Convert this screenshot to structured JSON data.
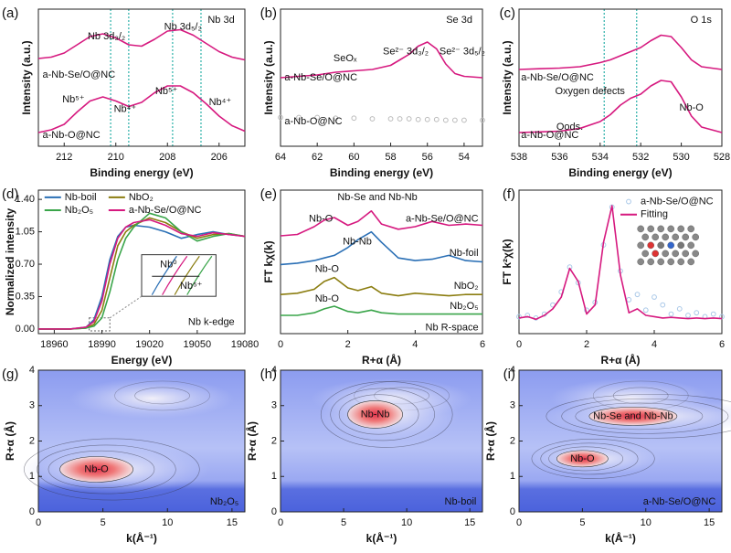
{
  "chart_data": [
    {
      "type": "line",
      "panel": "(a)",
      "xlabel": "Binding energy (eV)",
      "ylabel": "Intensity (a.u.)",
      "xlim": [
        213,
        205
      ],
      "ylim": [
        0,
        10
      ],
      "xticks": [
        212,
        210,
        208,
        206
      ],
      "x": [
        213,
        212.5,
        212,
        211.5,
        211,
        210.5,
        210,
        209.5,
        209,
        208.5,
        208,
        207.5,
        207,
        206.5,
        206,
        205.5,
        205
      ],
      "series": [
        {
          "name": "a-Nb-Se/O@NC",
          "color": "#d6197f",
          "values": [
            6.4,
            6.5,
            6.8,
            7.4,
            8.0,
            8.2,
            7.9,
            7.4,
            7.3,
            7.8,
            8.4,
            8.5,
            8.1,
            7.5,
            6.9,
            6.5,
            6.3
          ]
        },
        {
          "name": "a-Nb-O@NC",
          "color": "#d6197f",
          "values": [
            1.0,
            1.2,
            1.6,
            2.5,
            3.3,
            3.6,
            3.3,
            2.9,
            3.2,
            3.9,
            4.4,
            4.4,
            3.9,
            3.1,
            2.2,
            1.5,
            1.1
          ]
        }
      ],
      "vlines": [
        210.2,
        209.5,
        207.8,
        206.7
      ],
      "annotations": [
        {
          "text": "Nb 3d",
          "color": "#111"
        },
        {
          "text": "Nb 3d₃/₂",
          "color": "#111"
        },
        {
          "text": "Nb 3d₅/₂",
          "color": "#111"
        },
        {
          "text": "Nb⁵⁺",
          "color": "#3a9a3a"
        },
        {
          "text": "Nb⁴⁺",
          "color": "#9b59c6"
        },
        {
          "text": "Nb⁵⁺",
          "color": "#e08a2a"
        },
        {
          "text": "Nb⁴⁺",
          "color": "#2a6fb5"
        }
      ]
    },
    {
      "type": "line",
      "panel": "(b)",
      "xlabel": "Binding energy (eV)",
      "ylabel": "Intensity (a.u.)",
      "xlim": [
        64,
        53
      ],
      "ylim": [
        0,
        10
      ],
      "xticks": [
        64,
        62,
        60,
        58,
        56,
        54
      ],
      "x": [
        64,
        63,
        62,
        61,
        60,
        59,
        58,
        57.5,
        57,
        56.5,
        56,
        55.5,
        55,
        54.5,
        54,
        53
      ],
      "series": [
        {
          "name": "a-Nb-Se/O@NC",
          "color": "#d6197f",
          "values": [
            5.0,
            5.1,
            5.2,
            5.4,
            5.5,
            5.6,
            5.9,
            6.3,
            6.7,
            7.3,
            7.6,
            7.1,
            6.0,
            5.3,
            5.1,
            5.0
          ]
        },
        {
          "name": "a-Nb-O@NC",
          "color": "#bbbbbb",
          "markers": true,
          "values": [
            2.1,
            2.1,
            2.1,
            2.05,
            2.05,
            2.0,
            2.0,
            2.0,
            2.0,
            1.95,
            1.95,
            1.95,
            1.9,
            1.9,
            1.9,
            1.9
          ]
        }
      ],
      "annotations": [
        {
          "text": "Se 3d",
          "color": "#111"
        },
        {
          "text": "SeOₓ",
          "color": "#3a9a3a"
        },
        {
          "text": "Se²⁻ 3d₃/₂",
          "color": "#9b59c6"
        },
        {
          "text": "Se²⁻ 3d₅/₂",
          "color": "#2a8fa5"
        }
      ]
    },
    {
      "type": "line",
      "panel": "(c)",
      "xlabel": "Binding energy (eV)",
      "ylabel": "Intensity (a.u.)",
      "xlim": [
        538,
        528
      ],
      "ylim": [
        0,
        10
      ],
      "xticks": [
        538,
        536,
        534,
        532,
        530,
        528
      ],
      "x": [
        538,
        537,
        536,
        535,
        534,
        533.5,
        533,
        532.5,
        532,
        531.5,
        531,
        530.5,
        530,
        529.5,
        529,
        528
      ],
      "series": [
        {
          "name": "a-Nb-Se/O@NC",
          "color": "#d6197f",
          "values": [
            5.6,
            5.65,
            5.7,
            5.8,
            6.1,
            6.3,
            6.6,
            6.9,
            7.2,
            7.7,
            8.1,
            8.0,
            7.2,
            6.3,
            5.8,
            5.6
          ]
        },
        {
          "name": "a-Nb-O@NC",
          "color": "#d6197f",
          "values": [
            1.0,
            1.05,
            1.1,
            1.3,
            1.8,
            2.3,
            3.0,
            3.5,
            3.8,
            4.4,
            4.8,
            4.7,
            3.6,
            2.2,
            1.4,
            1.0
          ]
        }
      ],
      "vlines": [
        533.8,
        532.2
      ],
      "annotations": [
        {
          "text": "O 1s",
          "color": "#111"
        },
        {
          "text": "Oxygen defects",
          "color": "#3a9a3a"
        },
        {
          "text": "Oods.",
          "color": "#9b59c6"
        },
        {
          "text": "Nb-O",
          "color": "#2a6fb5"
        }
      ]
    },
    {
      "type": "line",
      "panel": "(d)",
      "xlabel": "Energy (eV)",
      "ylabel": "Normalized intensity",
      "xlim": [
        18950,
        19080
      ],
      "ylim": [
        -0.05,
        1.5
      ],
      "xticks": [
        18960,
        18990,
        19020,
        19050,
        19080
      ],
      "yticks": [
        {
          "value": 0,
          "label": "0.00"
        },
        {
          "value": 0.35,
          "label": "0.35"
        },
        {
          "value": 0.7,
          "label": "0.70"
        },
        {
          "value": 1.05,
          "label": "1.05"
        },
        {
          "value": 1.4,
          "label": "1.40"
        }
      ],
      "legend": true,
      "x": [
        18950,
        18970,
        18980,
        18985,
        18990,
        18995,
        19000,
        19005,
        19010,
        19020,
        19030,
        19040,
        19050,
        19060,
        19070,
        19080
      ],
      "series": [
        {
          "name": "Nb-boil",
          "color": "#2a6fb5",
          "values": [
            0,
            0,
            0.02,
            0.1,
            0.35,
            0.75,
            1.0,
            1.1,
            1.12,
            1.1,
            1.05,
            0.98,
            1.02,
            1.05,
            1.02,
            1.0
          ]
        },
        {
          "name": "NbO₂",
          "color": "#8b7d10",
          "values": [
            0,
            0,
            0.01,
            0.05,
            0.2,
            0.55,
            0.9,
            1.05,
            1.12,
            1.2,
            1.15,
            1.05,
            0.98,
            1.02,
            1.03,
            1.0
          ]
        },
        {
          "name": "Nb₂O₅",
          "color": "#3aa54a",
          "values": [
            0,
            0,
            0.01,
            0.03,
            0.12,
            0.4,
            0.75,
            0.98,
            1.1,
            1.25,
            1.2,
            1.05,
            0.95,
            1.0,
            1.03,
            1.0
          ]
        },
        {
          "name": "a-Nb-Se/O@NC",
          "color": "#d6197f",
          "values": [
            0,
            0,
            0.02,
            0.08,
            0.3,
            0.7,
            0.98,
            1.1,
            1.15,
            1.18,
            1.12,
            1.03,
            1.0,
            1.04,
            1.02,
            1.0
          ]
        }
      ],
      "annotations": [
        {
          "text": "Nb k-edge",
          "color": "#111"
        },
        {
          "text": "Nb⁰",
          "color": "#111"
        },
        {
          "text": "Nb⁵⁺",
          "color": "#111"
        }
      ]
    },
    {
      "type": "line",
      "panel": "(e)",
      "xlabel": "R+α (Å)",
      "ylabel": "FT kχ(k)",
      "xlim": [
        0,
        6
      ],
      "ylim": [
        0,
        11
      ],
      "xticks": [
        0,
        2,
        4,
        6
      ],
      "x": [
        0,
        0.5,
        1,
        1.3,
        1.6,
        2,
        2.3,
        2.7,
        3,
        3.5,
        4,
        4.5,
        5,
        5.5,
        6
      ],
      "series": [
        {
          "name": "a-Nb-Se/O@NC",
          "color": "#d6197f",
          "values": [
            7.5,
            7.6,
            8.2,
            8.7,
            8.9,
            8.3,
            8.6,
            9.4,
            8.4,
            8.0,
            8.2,
            8.6,
            8.3,
            8.4,
            8.3
          ]
        },
        {
          "name": "Nb-foil",
          "color": "#2a6fb5",
          "values": [
            5.3,
            5.4,
            5.6,
            5.8,
            6.0,
            6.6,
            7.2,
            7.8,
            7.0,
            5.8,
            5.6,
            5.7,
            6.0,
            5.6,
            5.5
          ]
        },
        {
          "name": "NbO₂",
          "color": "#8b7d10",
          "values": [
            3.0,
            3.1,
            3.4,
            4.0,
            4.3,
            3.5,
            3.3,
            3.6,
            3.1,
            2.9,
            3.1,
            3.0,
            2.9,
            3.0,
            3.0
          ]
        },
        {
          "name": "Nb₂O₅",
          "color": "#3aa54a",
          "values": [
            1.4,
            1.4,
            1.6,
            1.9,
            2.1,
            1.7,
            1.6,
            1.8,
            1.6,
            1.5,
            1.5,
            1.5,
            1.5,
            1.5,
            1.5
          ]
        }
      ],
      "annotations": [
        {
          "text": "Nb-Se and Nb-Nb",
          "color": "#111"
        },
        {
          "text": "Nb-O",
          "color": "#111"
        },
        {
          "text": "Nb-Nb",
          "color": "#111"
        },
        {
          "text": "Nb-O",
          "color": "#111"
        },
        {
          "text": "Nb-O",
          "color": "#111"
        },
        {
          "text": "Nb R-space",
          "color": "#111"
        }
      ]
    },
    {
      "type": "line",
      "panel": "(f)",
      "xlabel": "R+α (Å)",
      "ylabel": "FT k²χ(k)",
      "xlim": [
        0,
        6
      ],
      "ylim": [
        -1,
        10
      ],
      "xticks": [
        0,
        2,
        4,
        6
      ],
      "legend": true,
      "x": [
        0,
        0.25,
        0.5,
        0.75,
        1,
        1.25,
        1.5,
        1.75,
        2,
        2.25,
        2.5,
        2.75,
        3,
        3.25,
        3.5,
        3.75,
        4,
        4.25,
        4.5,
        4.75,
        5,
        5.25,
        5.5,
        5.75,
        6
      ],
      "series": [
        {
          "name": "a-Nb-Se/O@NC",
          "color": "#a9c8e8",
          "markers": true,
          "values": [
            0.3,
            0.4,
            0.2,
            0.5,
            1.2,
            2.2,
            4.1,
            2.9,
            0.8,
            1.4,
            5.8,
            8.7,
            3.8,
            1.6,
            2.0,
            0.8,
            1.8,
            1.2,
            0.5,
            0.9,
            0.4,
            0.6,
            0.3,
            0.5,
            0.3
          ]
        },
        {
          "name": "Fitting",
          "color": "#d6197f",
          "values": [
            0.2,
            0.3,
            0.1,
            0.4,
            0.9,
            1.8,
            4.0,
            3.0,
            0.5,
            1.2,
            6.0,
            8.8,
            3.5,
            0.6,
            0.9,
            0.4,
            0.3,
            0.2,
            0.25,
            0.2,
            0.15,
            0.2,
            0.15,
            0.2,
            0.15
          ]
        }
      ],
      "annotations": []
    },
    {
      "type": "contour",
      "panel": "(g)",
      "xlabel": "k(Å⁻¹)",
      "ylabel": "R+α (Å)",
      "xlim": [
        0,
        16
      ],
      "ylim": [
        0,
        4
      ],
      "xticks": [
        0,
        5,
        10,
        15
      ],
      "yticks": [
        0,
        1,
        2,
        3,
        4
      ],
      "peaks": [
        {
          "name": "Nb-O",
          "k": 4.5,
          "r": 1.2
        }
      ],
      "annotations": [
        {
          "text": "Nb₂O₅",
          "color": "#dfe4ff"
        }
      ]
    },
    {
      "type": "contour",
      "panel": "(h)",
      "xlabel": "k(Å⁻¹)",
      "ylabel": "R+α (Å)",
      "xlim": [
        0,
        16
      ],
      "ylim": [
        0,
        4
      ],
      "xticks": [
        0,
        5,
        10,
        15
      ],
      "yticks": [
        0,
        1,
        2,
        3,
        4
      ],
      "peaks": [
        {
          "name": "Nb-Nb",
          "k": 7.5,
          "r": 2.75
        }
      ],
      "annotations": [
        {
          "text": "Nb-boil",
          "color": "#dfe4ff"
        }
      ]
    },
    {
      "type": "contour",
      "panel": "(i)",
      "xlabel": "k(Å⁻¹)",
      "ylabel": "R+α (Å)",
      "xlim": [
        0,
        16
      ],
      "ylim": [
        0,
        4
      ],
      "xticks": [
        0,
        5,
        10,
        15
      ],
      "yticks": [
        0,
        1,
        2,
        3,
        4
      ],
      "peaks": [
        {
          "name": "Nb-Se and Nb-Nb",
          "k": 9,
          "r": 2.7
        },
        {
          "name": "Nb-O",
          "k": 5,
          "r": 1.5
        }
      ],
      "annotations": [
        {
          "text": "a-Nb-Se/O@NC",
          "color": "#dfe4ff"
        }
      ]
    }
  ]
}
